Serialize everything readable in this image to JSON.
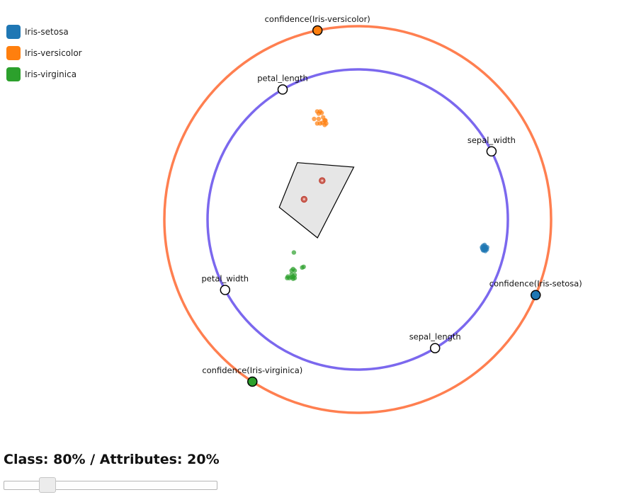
{
  "legend": [
    {
      "label": "Iris-setosa",
      "color": "#1f77b4"
    },
    {
      "label": "Iris-versicolor",
      "color": "#ff7f0e"
    },
    {
      "label": "Iris-virginica",
      "color": "#2ca02c"
    }
  ],
  "colors": {
    "class_ring": "#ff7f50",
    "attribute_ring": "#7b68ee",
    "selection_fill": "#e6e6e6",
    "highlight_point": "#c0392b"
  },
  "control": {
    "ratio_label": "Class: 80% / Attributes: 20%",
    "class_weight": 0.8
  },
  "chart_data": {
    "type": "scatter",
    "title": "",
    "anchors": {
      "class": [
        {
          "label": "confidence(Iris-versicolor)",
          "angle_deg": 258,
          "color": "#ff7f0e"
        },
        {
          "label": "confidence(Iris-setosa)",
          "angle_deg": 23,
          "color": "#1f77b4"
        },
        {
          "label": "confidence(Iris-virginica)",
          "angle_deg": 123,
          "color": "#2ca02c"
        }
      ],
      "attributes": [
        {
          "label": "petal_length",
          "angle_deg": 240
        },
        {
          "label": "sepal_width",
          "angle_deg": 333
        },
        {
          "label": "petal_width",
          "angle_deg": 152
        },
        {
          "label": "sepal_length",
          "angle_deg": 59
        }
      ]
    },
    "series": [
      {
        "name": "Iris-setosa",
        "color": "#1f77b4",
        "points": [
          [
            0.835,
            0.175
          ],
          [
            0.84,
            0.19
          ],
          [
            0.85,
            0.18
          ],
          [
            0.845,
            0.2
          ],
          [
            0.83,
            0.195
          ],
          [
            0.855,
            0.19
          ],
          [
            0.86,
            0.2
          ],
          [
            0.84,
            0.205
          ],
          [
            0.828,
            0.185
          ],
          [
            0.85,
            0.21
          ],
          [
            0.845,
            0.17
          ],
          [
            0.862,
            0.185
          ],
          [
            0.835,
            0.205
          ],
          [
            0.852,
            0.2
          ],
          [
            0.842,
            0.184
          ]
        ]
      },
      {
        "name": "Iris-versicolor",
        "color": "#ff7f0e",
        "points": [
          [
            -0.27,
            -0.72
          ],
          [
            -0.26,
            -0.705
          ],
          [
            -0.25,
            -0.72
          ],
          [
            -0.24,
            -0.71
          ],
          [
            -0.23,
            -0.68
          ],
          [
            -0.22,
            -0.66
          ],
          [
            -0.21,
            -0.64
          ],
          [
            -0.22,
            -0.63
          ],
          [
            -0.27,
            -0.64
          ],
          [
            -0.25,
            -0.64
          ],
          [
            -0.29,
            -0.67
          ],
          [
            -0.26,
            -0.67
          ],
          [
            -0.215,
            -0.66
          ],
          [
            -0.235,
            -0.645
          ]
        ]
      },
      {
        "name": "Iris-virginica",
        "color": "#2ca02c",
        "points": [
          [
            -0.47,
            0.39
          ],
          [
            -0.44,
            0.385
          ],
          [
            -0.43,
            0.38
          ],
          [
            -0.44,
            0.365
          ],
          [
            -0.42,
            0.37
          ],
          [
            -0.44,
            0.34
          ],
          [
            -0.43,
            0.33
          ],
          [
            -0.465,
            0.38
          ],
          [
            -0.42,
            0.34
          ],
          [
            -0.36,
            0.315
          ],
          [
            -0.37,
            0.32
          ],
          [
            -0.455,
            0.39
          ],
          [
            -0.43,
            0.395
          ],
          [
            -0.42,
            0.39
          ],
          [
            -0.425,
            0.22
          ]
        ]
      }
    ],
    "selection": {
      "polygon": [
        [
          -0.402,
          -0.379
        ],
        [
          -0.026,
          -0.349
        ],
        [
          -0.268,
          0.122
        ],
        [
          -0.522,
          -0.081
        ]
      ],
      "points": [
        [
          -0.237,
          -0.259
        ],
        [
          -0.357,
          -0.135
        ]
      ]
    }
  }
}
